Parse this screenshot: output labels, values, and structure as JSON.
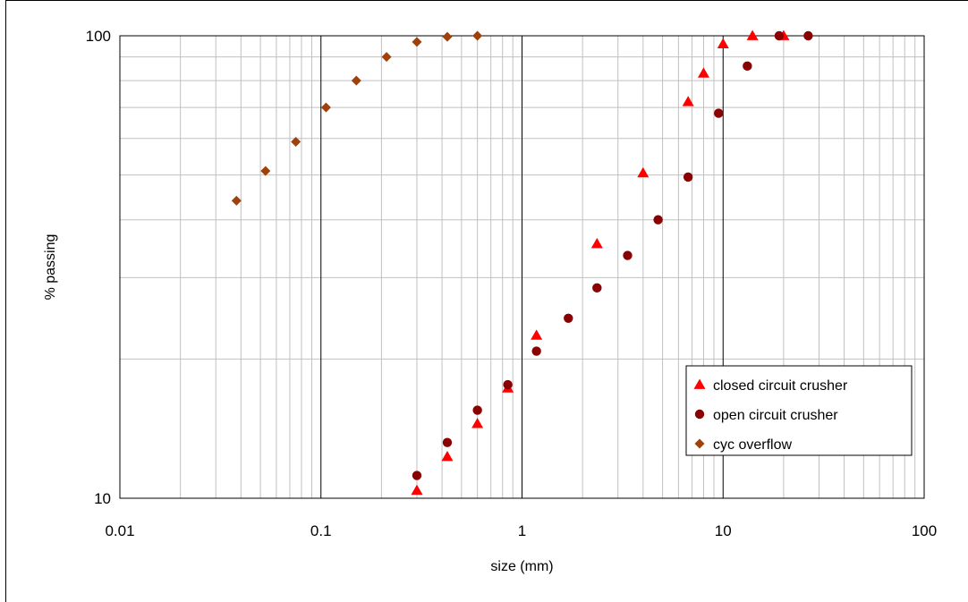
{
  "chart_data": {
    "type": "scatter",
    "title": "",
    "xlabel": "size (mm)",
    "ylabel": "% passing",
    "x_scale": "log",
    "y_scale": "log",
    "xlim": [
      0.01,
      100
    ],
    "ylim": [
      10,
      100
    ],
    "x_ticks": [
      "0.01",
      "0.1",
      "1",
      "10",
      "100"
    ],
    "y_ticks": [
      "10",
      "100"
    ],
    "grid": true,
    "legend_position": "bottom-right",
    "series": [
      {
        "name": "closed circuit crusher",
        "marker": "triangle",
        "color": "#ff0000",
        "points": [
          {
            "x": 0.3,
            "y": 10.4
          },
          {
            "x": 0.425,
            "y": 12.3
          },
          {
            "x": 0.6,
            "y": 14.5
          },
          {
            "x": 0.85,
            "y": 17.3
          },
          {
            "x": 1.18,
            "y": 22.5
          },
          {
            "x": 2.36,
            "y": 35.5
          },
          {
            "x": 4.0,
            "y": 50.5
          },
          {
            "x": 6.7,
            "y": 72.0
          },
          {
            "x": 8.0,
            "y": 83.0
          },
          {
            "x": 10.0,
            "y": 96.0
          },
          {
            "x": 14.0,
            "y": 100.0
          },
          {
            "x": 20.0,
            "y": 100.0
          }
        ]
      },
      {
        "name": "open circuit crusher",
        "marker": "circle",
        "color": "#8b0000",
        "points": [
          {
            "x": 0.3,
            "y": 11.2
          },
          {
            "x": 0.425,
            "y": 13.2
          },
          {
            "x": 0.6,
            "y": 15.5
          },
          {
            "x": 0.85,
            "y": 17.6
          },
          {
            "x": 1.18,
            "y": 20.8
          },
          {
            "x": 1.7,
            "y": 24.5
          },
          {
            "x": 2.36,
            "y": 28.5
          },
          {
            "x": 3.35,
            "y": 33.5
          },
          {
            "x": 4.75,
            "y": 40.0
          },
          {
            "x": 6.7,
            "y": 49.5
          },
          {
            "x": 9.5,
            "y": 68.0
          },
          {
            "x": 13.2,
            "y": 86.0
          },
          {
            "x": 19.0,
            "y": 100.0
          },
          {
            "x": 26.5,
            "y": 100.0
          }
        ]
      },
      {
        "name": "cyc overflow",
        "marker": "diamond",
        "color": "#a0400b",
        "points": [
          {
            "x": 0.038,
            "y": 44.0
          },
          {
            "x": 0.053,
            "y": 51.0
          },
          {
            "x": 0.075,
            "y": 59.0
          },
          {
            "x": 0.106,
            "y": 70.0
          },
          {
            "x": 0.15,
            "y": 80.0
          },
          {
            "x": 0.212,
            "y": 90.0
          },
          {
            "x": 0.3,
            "y": 97.0
          },
          {
            "x": 0.425,
            "y": 99.5
          },
          {
            "x": 0.6,
            "y": 100.0
          }
        ]
      }
    ]
  }
}
